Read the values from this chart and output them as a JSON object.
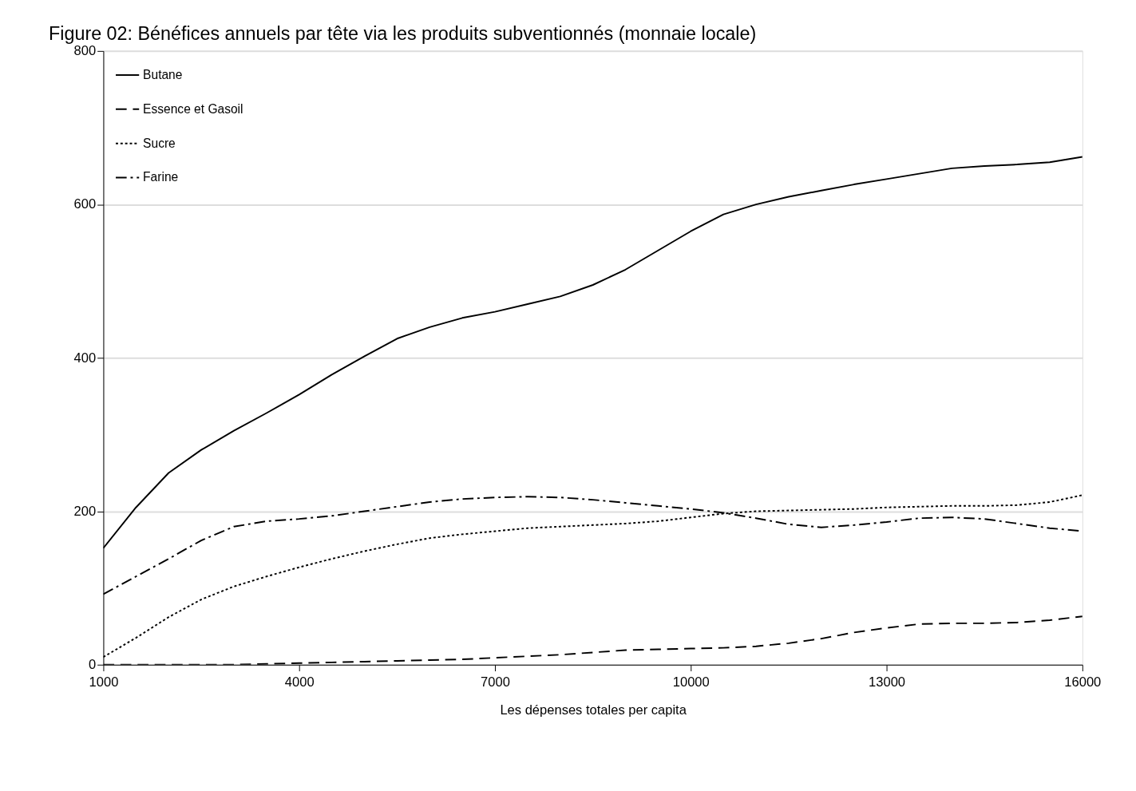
{
  "chart_data": {
    "type": "line",
    "title": "Figure 02: Bénéfices annuels par tête via les produits subventionnés (monnaie locale)",
    "xlabel": "Les dépenses totales per capita",
    "x": [
      1000,
      1500,
      2000,
      2500,
      3000,
      3500,
      4000,
      4500,
      5000,
      5500,
      6000,
      6500,
      7000,
      7500,
      8000,
      8500,
      9000,
      9500,
      10000,
      10500,
      11000,
      11500,
      12000,
      12500,
      13000,
      13500,
      14000,
      14500,
      15000,
      15500,
      16000
    ],
    "series": [
      {
        "name": "Butane",
        "color": "#000000",
        "line_style": "solid",
        "values": [
          152,
          205,
          250,
          280,
          305,
          328,
          352,
          378,
          402,
          425,
          440,
          452,
          460,
          470,
          480,
          495,
          515,
          540,
          565,
          587,
          600,
          610,
          618,
          626,
          633,
          640,
          647,
          650,
          652,
          655,
          662
        ]
      },
      {
        "name": "Essence et Gasoil",
        "color": "#000000",
        "line_style": "dashed",
        "values": [
          0,
          0,
          0,
          0,
          0,
          1,
          2,
          3,
          4,
          5,
          6,
          7,
          9,
          11,
          13,
          16,
          19,
          20,
          21,
          22,
          24,
          28,
          34,
          42,
          48,
          53,
          54,
          54,
          55,
          58,
          63
        ]
      },
      {
        "name": "Sucre",
        "color": "#000000",
        "line_style": "dotted",
        "values": [
          10,
          35,
          62,
          85,
          102,
          115,
          127,
          138,
          148,
          157,
          165,
          170,
          174,
          178,
          180,
          182,
          184,
          187,
          192,
          197,
          200,
          201,
          202,
          203,
          205,
          206,
          207,
          207,
          208,
          212,
          221
        ]
      },
      {
        "name": "Farine",
        "color": "#000000",
        "line_style": "dashdot",
        "values": [
          92,
          115,
          138,
          162,
          180,
          187,
          190,
          194,
          200,
          206,
          212,
          216,
          218,
          219,
          218,
          215,
          211,
          207,
          203,
          198,
          191,
          183,
          179,
          182,
          186,
          191,
          192,
          190,
          184,
          178,
          174
        ]
      }
    ],
    "xlim": [
      1000,
      16000
    ],
    "xticks": [
      1000,
      4000,
      7000,
      10000,
      13000,
      16000
    ],
    "ylim": [
      0,
      800
    ],
    "yticks": [
      0,
      200,
      400,
      600,
      800
    ],
    "grid": "y",
    "legend": "top left",
    "marker": "none"
  }
}
